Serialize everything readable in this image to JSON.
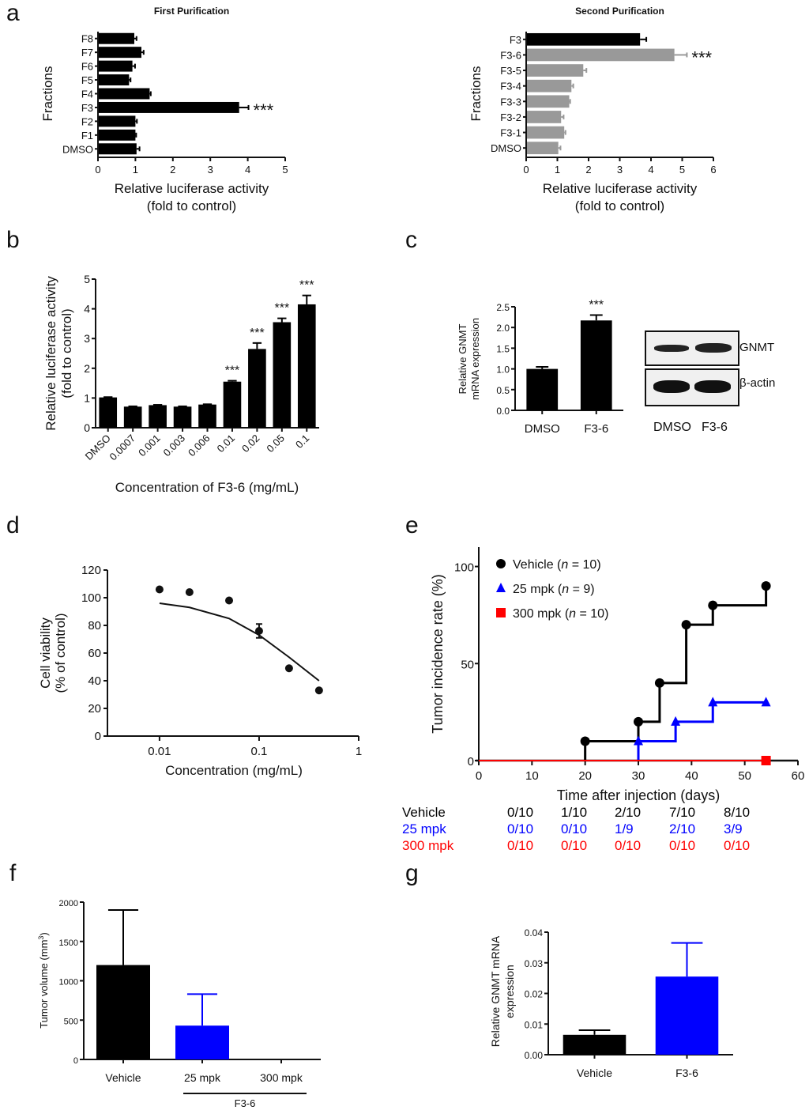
{
  "panels": {
    "a": "a",
    "b": "b",
    "c": "c",
    "d": "d",
    "e": "e",
    "f": "f",
    "g": "g"
  },
  "colors": {
    "black": "#000000",
    "gray": "#999999",
    "blue": "#0000ff",
    "red": "#ff0000"
  },
  "chart_data": [
    {
      "id": "a1",
      "type": "bar",
      "orientation": "horizontal",
      "title": "First Purification",
      "ylabel": "Fractions",
      "xlabel": "Relative luciferase activity",
      "xlabel2": "(fold to control)",
      "xlim": [
        0,
        5
      ],
      "xticks": [
        "0",
        "1",
        "2",
        "3",
        "4",
        "5"
      ],
      "categories": [
        "F8",
        "F7",
        "F6",
        "F5",
        "F4",
        "F3",
        "F2",
        "F1",
        "DMSO"
      ],
      "values": [
        0.97,
        1.16,
        0.92,
        0.83,
        1.38,
        3.77,
        1.0,
        1.0,
        1.03
      ],
      "errors": [
        0.06,
        0.06,
        0.07,
        0.04,
        0.03,
        0.25,
        0.04,
        0.02,
        0.08
      ],
      "colors": [
        "black",
        "black",
        "black",
        "black",
        "black",
        "black",
        "black",
        "black",
        "black"
      ],
      "annotations": [
        {
          "category": "F3",
          "text": "***"
        }
      ]
    },
    {
      "id": "a2",
      "type": "bar",
      "orientation": "horizontal",
      "title": "Second Purification",
      "ylabel": "Fractions",
      "xlabel": "Relative luciferase activity",
      "xlabel2": "(fold to control)",
      "xlim": [
        0,
        6
      ],
      "xticks": [
        "0",
        "1",
        "2",
        "3",
        "4",
        "5",
        "6"
      ],
      "categories": [
        "F3",
        "F3-6",
        "F3-5",
        "F3-4",
        "F3-3",
        "F3-2",
        "F3-1",
        "DMSO"
      ],
      "values": [
        3.65,
        4.75,
        1.83,
        1.45,
        1.38,
        1.12,
        1.22,
        1.03
      ],
      "errors": [
        0.2,
        0.4,
        0.1,
        0.06,
        0.03,
        0.08,
        0.04,
        0.07
      ],
      "colors": [
        "black",
        "gray",
        "gray",
        "gray",
        "gray",
        "gray",
        "gray",
        "gray"
      ],
      "annotations": [
        {
          "category": "F3-6",
          "text": "***"
        }
      ]
    },
    {
      "id": "b",
      "type": "bar",
      "ylabel": "Relative luciferase activity",
      "ylabel2": "(fold to control)",
      "xlabel": "Concentration of F3-6 (mg/mL)",
      "ylim": [
        0,
        5
      ],
      "yticks": [
        "0",
        "1",
        "2",
        "3",
        "4",
        "5"
      ],
      "categories": [
        "DMSO",
        "0.0007",
        "0.001",
        "0.003",
        "0.006",
        "0.01",
        "0.02",
        "0.05",
        "0.1"
      ],
      "values": [
        1.02,
        0.71,
        0.76,
        0.71,
        0.78,
        1.55,
        2.65,
        3.55,
        4.15
      ],
      "errors": [
        0.01,
        0.01,
        0.01,
        0.01,
        0.01,
        0.03,
        0.2,
        0.13,
        0.3
      ],
      "annotations": [
        "",
        "",
        "",
        "",
        "",
        "***",
        "***",
        "***",
        "***"
      ]
    },
    {
      "id": "c",
      "type": "bar",
      "ylabel": "Relative GNMT",
      "ylabel2": "mRNA expression",
      "ylim": [
        0,
        2.5
      ],
      "yticks": [
        "0.0",
        "0.5",
        "1.0",
        "1.5",
        "2.0",
        "2.5"
      ],
      "categories": [
        "DMSO",
        "F3-6"
      ],
      "values": [
        1.0,
        2.17
      ],
      "errors": [
        0.05,
        0.13
      ],
      "annotations": [
        "",
        "***"
      ]
    },
    {
      "id": "d",
      "type": "scatter",
      "ylabel": "Cell viability",
      "ylabel2": "(% of control)",
      "xlabel": "Concentration (mg/mL)",
      "xscale": "log",
      "xlim": [
        0.003,
        1
      ],
      "xticks": [
        "0.01",
        "0.1",
        "1"
      ],
      "ylim": [
        0,
        120
      ],
      "yticks": [
        "0",
        "20",
        "40",
        "60",
        "80",
        "100",
        "120"
      ],
      "x": [
        0.01,
        0.02,
        0.05,
        0.1,
        0.2,
        0.4
      ],
      "y": [
        106,
        104,
        98,
        76,
        49,
        33
      ],
      "errors": [
        0,
        0,
        0,
        5,
        0,
        0
      ],
      "fit": {
        "x": [
          0.01,
          0.02,
          0.05,
          0.1,
          0.2,
          0.4
        ],
        "y": [
          96,
          93,
          85,
          73,
          57,
          40
        ]
      }
    },
    {
      "id": "e",
      "type": "line",
      "step": true,
      "ylabel": "Tumor incidence rate (%)",
      "xlabel": "Time after injection (days)",
      "xlim": [
        0,
        60
      ],
      "xticks": [
        "0",
        "10",
        "20",
        "30",
        "40",
        "50",
        "60"
      ],
      "ylim": [
        0,
        110
      ],
      "yticks": [
        "0",
        "50",
        "100"
      ],
      "legend_position": "top-left",
      "series": [
        {
          "name": "Vehicle",
          "n": "10",
          "color": "black",
          "marker": "circle",
          "x": [
            20,
            30,
            34,
            39,
            44,
            54
          ],
          "y": [
            10,
            20,
            40,
            70,
            80,
            90
          ]
        },
        {
          "name": "25 mpk",
          "n": "9",
          "color": "blue",
          "marker": "triangle",
          "x": [
            30,
            37,
            44,
            54
          ],
          "y": [
            10,
            20,
            30,
            30
          ]
        },
        {
          "name": "300 mpk",
          "n": "10",
          "color": "red",
          "marker": "square",
          "x": [
            54
          ],
          "y": [
            0
          ]
        }
      ],
      "table": {
        "rows": [
          {
            "label": "Vehicle",
            "color": "black",
            "values": [
              "0/10",
              "1/10",
              "2/10",
              "7/10",
              "8/10"
            ]
          },
          {
            "label": "25 mpk",
            "color": "blue",
            "values": [
              "0/10",
              "0/10",
              "1/9",
              "2/10",
              "3/9"
            ]
          },
          {
            "label": "300 mpk",
            "color": "red",
            "values": [
              "0/10",
              "0/10",
              "0/10",
              "0/10",
              "0/10"
            ]
          }
        ]
      }
    },
    {
      "id": "f",
      "type": "bar",
      "ylabel": "Tumor volume (mm",
      "ylabel_sup": "3",
      "ylabel_end": ")",
      "ylim": [
        0,
        2000
      ],
      "yticks": [
        "0",
        "500",
        "1000",
        "1500",
        "2000"
      ],
      "categories": [
        "Vehicle",
        "25 mpk",
        "300 mpk"
      ],
      "values": [
        1200,
        430,
        0
      ],
      "errors": [
        700,
        400,
        0
      ],
      "colors": [
        "black",
        "blue",
        "black"
      ],
      "group_label": "F3-6"
    },
    {
      "id": "g",
      "type": "bar",
      "ylabel": "Relative GNMT mRNA",
      "ylabel2": "expression",
      "ylim": [
        0,
        0.04
      ],
      "yticks": [
        "0.00",
        "0.01",
        "0.02",
        "0.03",
        "0.04"
      ],
      "categories": [
        "Vehicle",
        "F3-6"
      ],
      "values": [
        0.0065,
        0.0255
      ],
      "errors": [
        0.0015,
        0.011
      ],
      "colors": [
        "black",
        "blue"
      ]
    }
  ],
  "blot": {
    "labels": [
      "GNMT",
      "β-actin"
    ],
    "lanes": [
      "DMSO",
      "F3-6"
    ]
  }
}
